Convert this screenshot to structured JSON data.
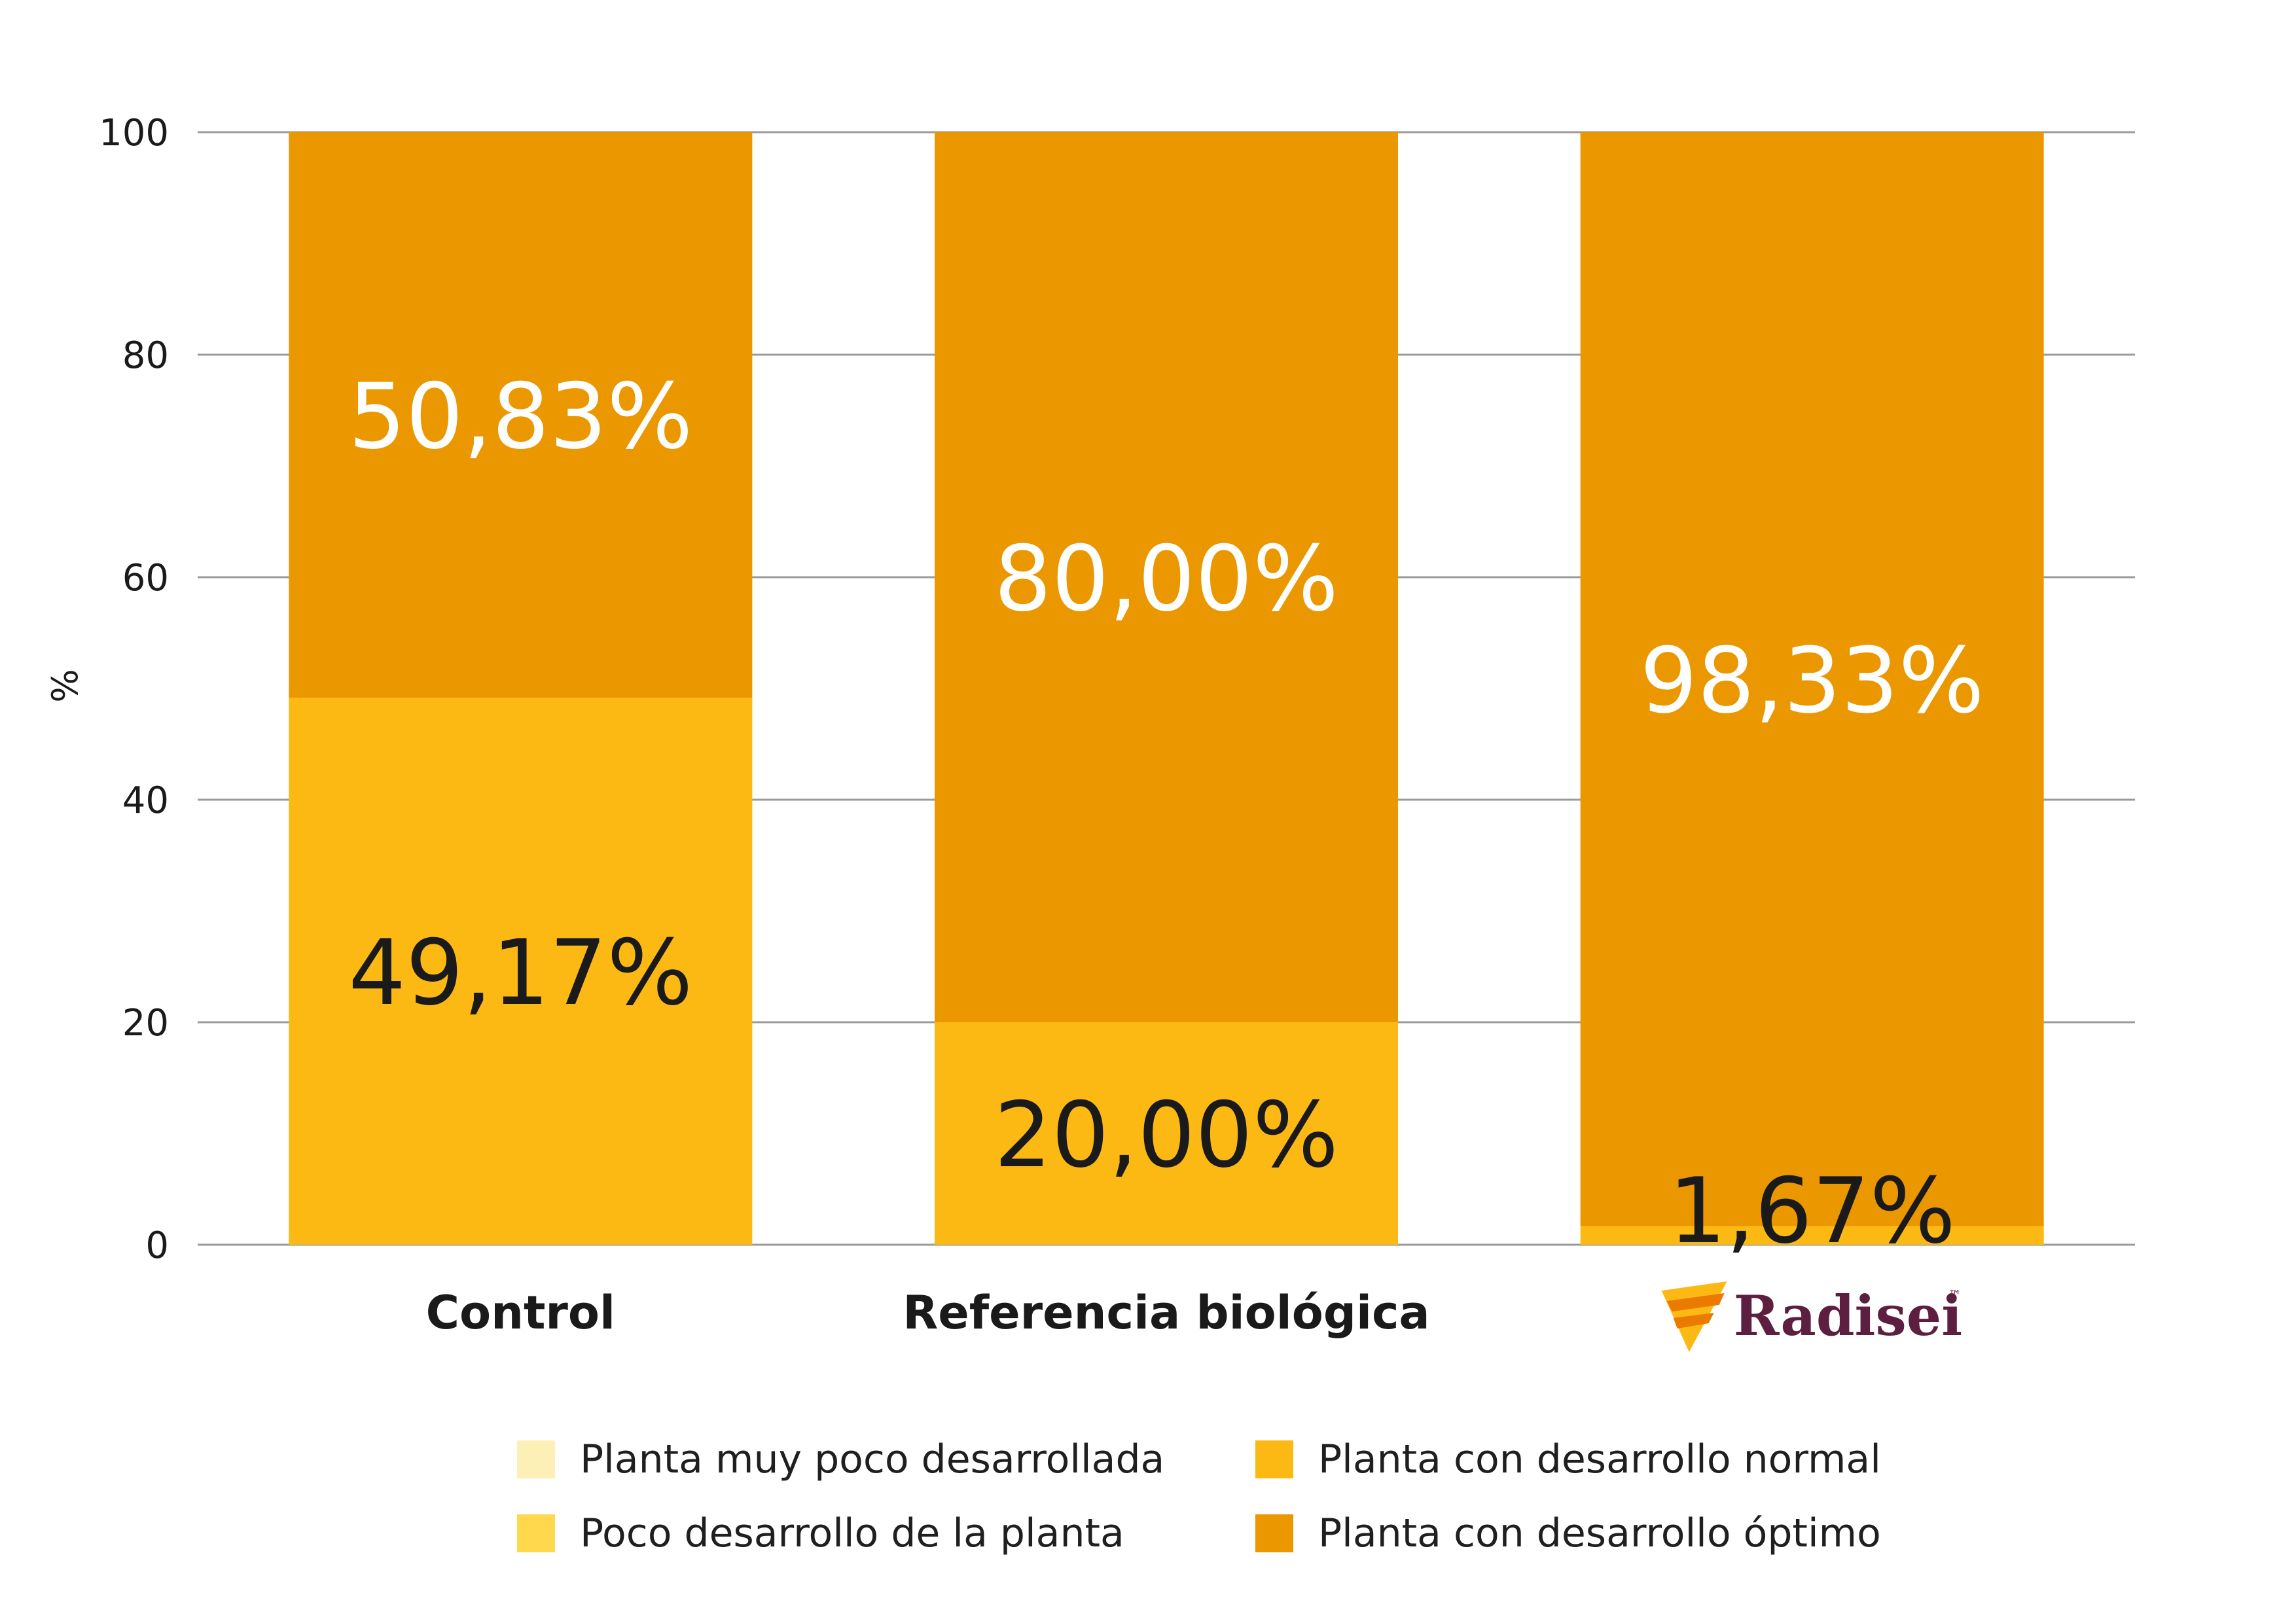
{
  "chart_data": {
    "type": "bar",
    "stacked": true,
    "categories": [
      "Control",
      "Referencia biológica",
      "Radisei"
    ],
    "category_label_styles": [
      "text",
      "text",
      "logo"
    ],
    "ylabel": "%",
    "xlabel": "",
    "ylim": [
      0,
      100
    ],
    "yticks": [
      "0",
      "20",
      "40",
      "60",
      "80",
      "100"
    ],
    "grid": true,
    "legend_position": "bottom",
    "series": [
      {
        "name": "Planta muy poco desarrollada",
        "color": "#fdf0b7",
        "values": [
          0,
          0,
          0
        ],
        "labels": [
          "",
          "",
          ""
        ],
        "label_color": "#1a1a1a"
      },
      {
        "name": "Poco desarrollo de la planta",
        "color": "#ffd84d",
        "values": [
          0,
          0,
          0
        ],
        "labels": [
          "",
          "",
          ""
        ],
        "label_color": "#1a1a1a"
      },
      {
        "name": "Planta con desarrollo normal",
        "color": "#fdb913",
        "values": [
          49.17,
          20.0,
          1.67
        ],
        "labels": [
          "49,17%",
          "20,00%",
          "1,67%"
        ],
        "label_color": "#1a1a1a"
      },
      {
        "name": "Planta con desarrollo óptimo",
        "color": "#ea9700",
        "values": [
          50.83,
          80.0,
          98.33
        ],
        "labels": [
          "50,83%",
          "80,00%",
          "98,33%"
        ],
        "label_color": "#ffffff"
      }
    ],
    "legend_order": [
      0,
      2,
      1,
      3
    ]
  },
  "logo": {
    "text": "Radisei",
    "tm": "™",
    "color": "#5c1f3f",
    "accent": "#fdb913"
  },
  "colors": {
    "gridline": "#9b9b9b",
    "axis_text": "#1a1a1a"
  }
}
